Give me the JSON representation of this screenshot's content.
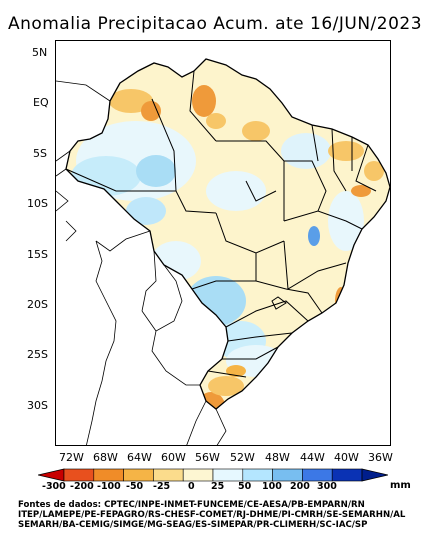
{
  "title": "Anomalia Precipitacao Acum. ate 16/JUN/2023",
  "y_axis": [
    "5N",
    "EQ",
    "5S",
    "10S",
    "15S",
    "20S",
    "25S",
    "30S"
  ],
  "x_axis": [
    "72W",
    "68W",
    "64W",
    "60W",
    "56W",
    "52W",
    "48W",
    "44W",
    "40W",
    "36W"
  ],
  "colorbar": {
    "labels": [
      "-300",
      "-200",
      "-100",
      "-50",
      "-25",
      "0",
      "25",
      "50",
      "100",
      "200",
      "300"
    ],
    "unit": "mm",
    "colors": [
      "#c80000",
      "#e8501e",
      "#f08c28",
      "#f5b446",
      "#fbdc8c",
      "#fdf6d2",
      "#e6f8ff",
      "#b4e6ff",
      "#78bef0",
      "#3c78e6",
      "#0a32b4",
      "#001e8c"
    ]
  },
  "credits": [
    "Fontes de dados: CPTEC/INPE-INMET-FUNCEME/CE-AESA/PB-EMPARN/RN",
    "ITEP/LAMEPE/PE-FEPAGRO/RS-CHESF-COMET/RJ-DHME/PI-CMRH/SE-SEMARHN/AL",
    "SEMARH/BA-CEMIG/SIMGE/MG-SEAG/ES-SIMEPAR/PR-CLIMERH/SC-IAC/SP"
  ]
}
